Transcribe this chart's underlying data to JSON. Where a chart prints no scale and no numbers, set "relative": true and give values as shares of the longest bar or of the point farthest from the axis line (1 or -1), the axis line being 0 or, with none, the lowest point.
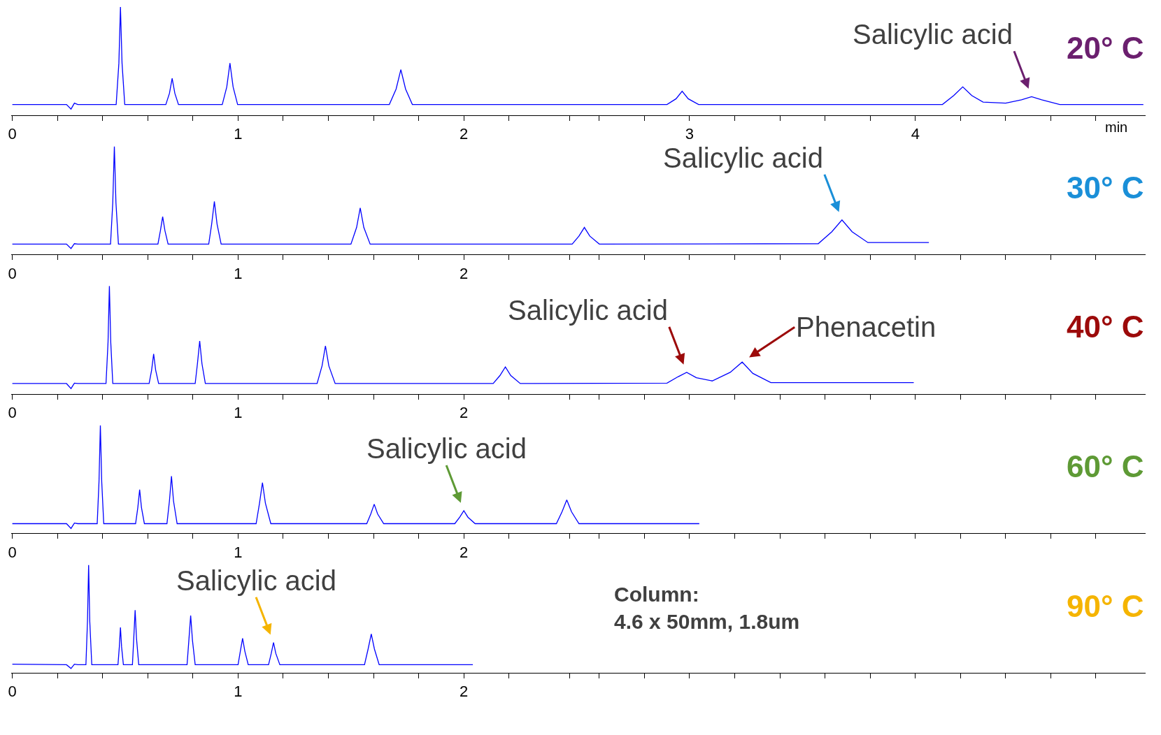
{
  "chart_data": [
    {
      "type": "line",
      "relative": true,
      "title": "20° C",
      "xlabel": "min",
      "tick_labels": "x",
      "xlim": [
        -0.005,
        5.02
      ],
      "xticks": [
        0,
        {
          "value": 0.2,
          "label": null
        },
        {
          "value": 0.4,
          "label": null
        },
        {
          "value": 0.6,
          "label": null
        },
        {
          "value": 0.8,
          "label": null
        },
        1,
        {
          "value": 1.2,
          "label": null
        },
        {
          "value": 1.4,
          "label": null
        },
        {
          "value": 1.6,
          "label": null
        },
        {
          "value": 1.8,
          "label": null
        },
        2,
        {
          "value": 2.2,
          "label": null
        },
        {
          "value": 2.47,
          "label": null
        },
        {
          "value": 2.6,
          "label": null
        },
        {
          "value": 2.8,
          "label": null
        },
        3,
        {
          "value": 3.2,
          "label": null
        },
        {
          "value": 3.4,
          "label": null
        },
        {
          "value": 3.6,
          "label": null
        },
        {
          "value": 3.8,
          "label": null
        },
        4,
        {
          "value": 4.2,
          "label": null
        },
        {
          "value": 4.4,
          "label": null
        },
        {
          "value": 4.6,
          "label": null
        },
        {
          "value": 4.8,
          "label": null
        }
      ],
      "x": [
        0,
        0.24,
        0.26,
        0.275,
        0.29,
        0.46,
        0.472,
        0.479,
        0.486,
        0.498,
        0.68,
        0.696,
        0.708,
        0.72,
        0.736,
        0.93,
        0.95,
        0.964,
        0.978,
        0.998,
        1.67,
        1.7,
        1.721,
        1.742,
        1.772,
        2.9,
        2.94,
        2.967,
        2.994,
        3.04,
        4.12,
        4.17,
        4.21,
        4.25,
        4.3,
        4.4,
        4.47,
        4.515,
        4.56,
        4.64,
        5.01
      ],
      "series": [
        {
          "color": "#0000ff",
          "values": [
            0.097,
            0.097,
            0.055,
            0.11,
            0.097,
            0.097,
            0.48,
            1.0,
            0.48,
            0.097,
            0.097,
            0.2,
            0.34,
            0.2,
            0.097,
            0.097,
            0.26,
            0.48,
            0.26,
            0.097,
            0.097,
            0.24,
            0.42,
            0.24,
            0.097,
            0.097,
            0.15,
            0.22,
            0.15,
            0.097,
            0.097,
            0.18,
            0.26,
            0.18,
            0.12,
            0.11,
            0.14,
            0.17,
            0.14,
            0.097,
            0.097
          ]
        }
      ],
      "annotations": [
        {
          "text": "Salicylic acid",
          "x": 4.515,
          "y": 0.17
        }
      ]
    },
    {
      "type": "line",
      "relative": true,
      "title": "30° C",
      "tick_labels": "x",
      "xlim": [
        -0.005,
        5.02
      ],
      "xticks": [
        0,
        {
          "value": 0.2,
          "label": null
        },
        {
          "value": 0.4,
          "label": null
        },
        {
          "value": 0.6,
          "label": null
        },
        {
          "value": 0.8,
          "label": null
        },
        1,
        {
          "value": 1.2,
          "label": null
        },
        {
          "value": 1.4,
          "label": null
        },
        {
          "value": 1.6,
          "label": null
        },
        {
          "value": 1.8,
          "label": null
        },
        2,
        {
          "value": 2.2,
          "label": null
        },
        {
          "value": 2.47,
          "label": null
        },
        {
          "value": 2.6,
          "label": null
        },
        {
          "value": 2.8,
          "label": null
        },
        {
          "value": 3,
          "label": null
        },
        {
          "value": 3.2,
          "label": null
        },
        {
          "value": 3.4,
          "label": null
        },
        {
          "value": 3.6,
          "label": null
        },
        {
          "value": 3.8,
          "label": null
        },
        {
          "value": 4,
          "label": null
        },
        {
          "value": 4.2,
          "label": null
        },
        {
          "value": 4.4,
          "label": null
        },
        {
          "value": 4.6,
          "label": null
        },
        {
          "value": 4.8,
          "label": null
        }
      ],
      "x": [
        0,
        0.24,
        0.26,
        0.275,
        0.29,
        0.435,
        0.445,
        0.452,
        0.459,
        0.47,
        0.645,
        0.656,
        0.666,
        0.676,
        0.69,
        0.87,
        0.883,
        0.895,
        0.907,
        0.925,
        1.5,
        1.525,
        1.541,
        1.557,
        1.585,
        2.48,
        2.51,
        2.534,
        2.558,
        2.6,
        3.57,
        3.63,
        3.675,
        3.72,
        3.79,
        4.06
      ],
      "series": [
        {
          "color": "#0000ff",
          "values": [
            0.096,
            0.096,
            0.055,
            0.1,
            0.096,
            0.096,
            0.48,
            1.0,
            0.48,
            0.096,
            0.096,
            0.22,
            0.35,
            0.22,
            0.096,
            0.096,
            0.28,
            0.49,
            0.28,
            0.096,
            0.096,
            0.25,
            0.43,
            0.25,
            0.096,
            0.096,
            0.17,
            0.25,
            0.17,
            0.096,
            0.1,
            0.21,
            0.32,
            0.21,
            0.11,
            0.11
          ]
        }
      ],
      "annotations": [
        {
          "text": "Salicylic acid",
          "x": 3.675,
          "y": 0.32
        }
      ]
    },
    {
      "type": "line",
      "relative": true,
      "title": "40° C",
      "tick_labels": "x",
      "xlim": [
        -0.005,
        5.02
      ],
      "xticks": [
        0,
        {
          "value": 0.2,
          "label": null
        },
        {
          "value": 0.4,
          "label": null
        },
        {
          "value": 0.6,
          "label": null
        },
        {
          "value": 0.8,
          "label": null
        },
        1,
        {
          "value": 1.2,
          "label": null
        },
        {
          "value": 1.4,
          "label": null
        },
        {
          "value": 1.6,
          "label": null
        },
        {
          "value": 1.8,
          "label": null
        },
        2,
        {
          "value": 2.2,
          "label": null
        },
        {
          "value": 2.47,
          "label": null
        },
        {
          "value": 2.6,
          "label": null
        },
        {
          "value": 2.8,
          "label": null
        },
        {
          "value": 3,
          "label": null
        },
        {
          "value": 3.2,
          "label": null
        },
        {
          "value": 3.4,
          "label": null
        },
        {
          "value": 3.6,
          "label": null
        },
        {
          "value": 3.8,
          "label": null
        },
        {
          "value": 4,
          "label": null
        },
        {
          "value": 4.2,
          "label": null
        },
        {
          "value": 4.4,
          "label": null
        },
        {
          "value": 4.6,
          "label": null
        },
        {
          "value": 4.8,
          "label": null
        }
      ],
      "x": [
        0,
        0.24,
        0.26,
        0.275,
        0.29,
        0.415,
        0.424,
        0.43,
        0.436,
        0.445,
        0.606,
        0.617,
        0.626,
        0.635,
        0.648,
        0.81,
        0.82,
        0.83,
        0.84,
        0.855,
        1.35,
        1.372,
        1.387,
        1.402,
        1.43,
        2.13,
        2.16,
        2.184,
        2.208,
        2.25,
        2.9,
        2.95,
        2.987,
        3.03,
        3.1,
        3.18,
        3.233,
        3.28,
        3.36,
        3.993
      ],
      "series": [
        {
          "color": "#0000ff",
          "values": [
            0.096,
            0.096,
            0.05,
            0.1,
            0.096,
            0.096,
            0.48,
            1.0,
            0.48,
            0.096,
            0.096,
            0.22,
            0.37,
            0.22,
            0.096,
            0.096,
            0.28,
            0.49,
            0.28,
            0.096,
            0.096,
            0.26,
            0.445,
            0.26,
            0.096,
            0.096,
            0.17,
            0.25,
            0.17,
            0.096,
            0.1,
            0.16,
            0.2,
            0.15,
            0.12,
            0.2,
            0.295,
            0.19,
            0.105,
            0.105
          ]
        }
      ],
      "annotations": [
        {
          "text": "Salicylic acid",
          "x": 2.987,
          "y": 0.2
        },
        {
          "text": "Phenacetin",
          "x": 3.233,
          "y": 0.295
        }
      ]
    },
    {
      "type": "line",
      "relative": true,
      "title": "60° C",
      "tick_labels": "x",
      "xlim": [
        -0.005,
        5.02
      ],
      "xticks": [
        0,
        {
          "value": 0.2,
          "label": null
        },
        {
          "value": 0.4,
          "label": null
        },
        {
          "value": 0.6,
          "label": null
        },
        {
          "value": 0.8,
          "label": null
        },
        1,
        {
          "value": 1.2,
          "label": null
        },
        {
          "value": 1.4,
          "label": null
        },
        {
          "value": 1.6,
          "label": null
        },
        {
          "value": 1.8,
          "label": null
        },
        2,
        {
          "value": 2.2,
          "label": null
        },
        {
          "value": 2.47,
          "label": null
        },
        {
          "value": 2.6,
          "label": null
        },
        {
          "value": 2.8,
          "label": null
        },
        {
          "value": 3,
          "label": null
        },
        {
          "value": 3.2,
          "label": null
        },
        {
          "value": 3.4,
          "label": null
        },
        {
          "value": 3.6,
          "label": null
        },
        {
          "value": 3.8,
          "label": null
        },
        {
          "value": 4,
          "label": null
        },
        {
          "value": 4.2,
          "label": null
        },
        {
          "value": 4.4,
          "label": null
        },
        {
          "value": 4.6,
          "label": null
        },
        {
          "value": 4.8,
          "label": null
        }
      ],
      "x": [
        0,
        0.24,
        0.26,
        0.275,
        0.29,
        0.376,
        0.384,
        0.39,
        0.396,
        0.405,
        0.546,
        0.556,
        0.564,
        0.572,
        0.585,
        0.685,
        0.696,
        0.705,
        0.714,
        0.73,
        1.08,
        1.095,
        1.108,
        1.121,
        1.145,
        1.57,
        1.588,
        1.603,
        1.618,
        1.645,
        1.96,
        1.982,
        2.0,
        2.018,
        2.05,
        2.41,
        2.435,
        2.456,
        2.477,
        2.51,
        3.043
      ],
      "series": [
        {
          "color": "#0000ff",
          "values": [
            0.09,
            0.09,
            0.045,
            0.095,
            0.09,
            0.09,
            0.48,
            1.0,
            0.48,
            0.09,
            0.09,
            0.24,
            0.405,
            0.24,
            0.09,
            0.09,
            0.3,
            0.53,
            0.3,
            0.09,
            0.09,
            0.28,
            0.47,
            0.28,
            0.09,
            0.09,
            0.18,
            0.27,
            0.18,
            0.09,
            0.09,
            0.15,
            0.21,
            0.15,
            0.09,
            0.09,
            0.2,
            0.31,
            0.2,
            0.09,
            0.09
          ]
        }
      ],
      "annotations": [
        {
          "text": "Salicylic acid",
          "x": 2.0,
          "y": 0.21
        }
      ]
    },
    {
      "type": "line",
      "relative": true,
      "title": "90° C",
      "tick_labels": "x",
      "xlim": [
        -0.005,
        5.02
      ],
      "xticks": [
        0,
        {
          "value": 0.2,
          "label": null
        },
        {
          "value": 0.4,
          "label": null
        },
        {
          "value": 0.6,
          "label": null
        },
        {
          "value": 0.8,
          "label": null
        },
        1,
        {
          "value": 1.2,
          "label": null
        },
        {
          "value": 1.4,
          "label": null
        },
        {
          "value": 1.6,
          "label": null
        },
        {
          "value": 1.8,
          "label": null
        },
        2,
        {
          "value": 2.2,
          "label": null
        },
        {
          "value": 2.47,
          "label": null
        },
        {
          "value": 2.6,
          "label": null
        },
        {
          "value": 2.8,
          "label": null
        },
        {
          "value": 3,
          "label": null
        },
        {
          "value": 3.2,
          "label": null
        },
        {
          "value": 3.4,
          "label": null
        },
        {
          "value": 3.6,
          "label": null
        },
        {
          "value": 3.8,
          "label": null
        },
        {
          "value": 4,
          "label": null
        },
        {
          "value": 4.2,
          "label": null
        },
        {
          "value": 4.4,
          "label": null
        },
        {
          "value": 4.6,
          "label": null
        },
        {
          "value": 4.8,
          "label": null
        }
      ],
      "x": [
        0,
        0.24,
        0.26,
        0.275,
        0.29,
        0.326,
        0.333,
        0.338,
        0.343,
        0.352,
        0.468,
        0.474,
        0.479,
        0.484,
        0.492,
        0.532,
        0.538,
        0.544,
        0.55,
        0.56,
        0.774,
        0.782,
        0.79,
        0.798,
        0.81,
        1.0,
        1.01,
        1.02,
        1.03,
        1.045,
        1.135,
        1.147,
        1.157,
        1.167,
        1.185,
        1.56,
        1.576,
        1.59,
        1.604,
        1.625,
        2.04
      ],
      "series": [
        {
          "color": "#0000ff",
          "values": [
            0.08,
            0.075,
            0.04,
            0.08,
            0.075,
            0.075,
            0.48,
            1.0,
            0.48,
            0.075,
            0.075,
            0.24,
            0.42,
            0.24,
            0.075,
            0.075,
            0.32,
            0.58,
            0.32,
            0.075,
            0.075,
            0.3,
            0.53,
            0.3,
            0.075,
            0.075,
            0.2,
            0.32,
            0.2,
            0.075,
            0.075,
            0.18,
            0.28,
            0.18,
            0.075,
            0.075,
            0.22,
            0.36,
            0.22,
            0.075,
            0.075
          ]
        }
      ],
      "annotations": [
        {
          "text": "Salicylic acid",
          "x": 1.157,
          "y": 0.28
        },
        "Column:\n4.6 x 50mm, 1.8um"
      ]
    }
  ]
}
